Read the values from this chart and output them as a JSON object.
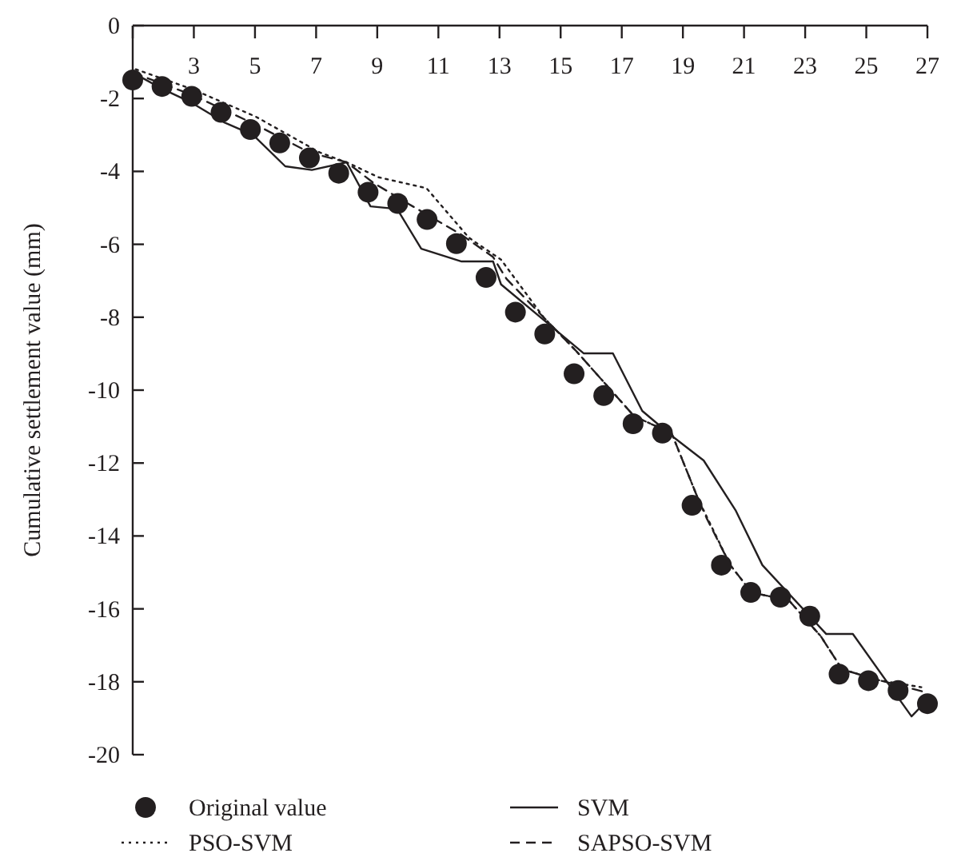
{
  "chart_data": {
    "type": "line",
    "ylabel": "Cumulative settlement value (mm)",
    "xlim": [
      1,
      27
    ],
    "xticks": [
      {
        "value": 1,
        "label": null
      },
      3,
      5,
      7,
      9,
      11,
      13,
      15,
      17,
      19,
      21,
      23,
      25,
      27
    ],
    "ylim": [
      -20,
      0
    ],
    "yticks": [
      0,
      -2,
      -4,
      -6,
      -8,
      -10,
      -12,
      -14,
      -16,
      -18,
      -20
    ],
    "grid": false,
    "legend": "bottom",
    "series": [
      {
        "name": "Original value",
        "type": "scatter",
        "marker": "circle",
        "color": "#231f20",
        "x": [
          1,
          1.96,
          2.93,
          3.89,
          4.85,
          5.81,
          6.78,
          7.74,
          8.7,
          9.67,
          10.63,
          11.59,
          12.56,
          13.52,
          14.48,
          15.44,
          16.41,
          17.37,
          18.33,
          19.3,
          20.26,
          21.22,
          22.19,
          23.15,
          24.11,
          25.07,
          26.04,
          27
        ],
        "values": [
          -1.49,
          -1.67,
          -1.94,
          -2.38,
          -2.85,
          -3.22,
          -3.63,
          -4.05,
          -4.57,
          -4.88,
          -5.32,
          -5.98,
          -6.91,
          -7.86,
          -8.46,
          -9.55,
          -10.15,
          -10.92,
          -11.18,
          -13.16,
          -14.8,
          -15.55,
          -15.68,
          -16.2,
          -17.79,
          -17.97,
          -18.24,
          -18.6
        ]
      },
      {
        "name": "SVM",
        "line_style": "solid",
        "marker": "none",
        "color": "#231f20",
        "x": [
          1,
          1.98,
          2.94,
          3.98,
          4.94,
          5.99,
          6.86,
          8.0,
          8.78,
          9.65,
          10.44,
          11.76,
          12.79,
          13.05,
          14.45,
          15.75,
          16.71,
          17.67,
          18.63,
          19.68,
          20.72,
          21.6,
          23.69,
          24.56,
          26.48,
          27
        ],
        "values": [
          -1.29,
          -1.74,
          -2.12,
          -2.65,
          -3.0,
          -3.86,
          -3.96,
          -3.75,
          -4.96,
          -5.03,
          -6.12,
          -6.47,
          -6.47,
          -7.1,
          -8.08,
          -8.99,
          -8.99,
          -10.57,
          -11.25,
          -11.93,
          -13.29,
          -14.8,
          -16.69,
          -16.69,
          -18.95,
          -18.5
        ]
      },
      {
        "name": "PSO-SVM",
        "line_style": "dotted",
        "marker": "none",
        "color": "#231f20",
        "x": [
          1.1,
          2.94,
          5.03,
          7.12,
          8.08,
          9.04,
          10.61,
          12.0,
          13.05,
          14.45,
          15.49,
          17.41,
          18.63,
          19.5,
          20.55,
          21.25,
          22.47,
          23.51,
          24.21,
          25.43,
          26.8
        ],
        "values": [
          -1.2,
          -1.74,
          -2.5,
          -3.48,
          -3.78,
          -4.16,
          -4.46,
          -5.82,
          -6.42,
          -8.01,
          -8.91,
          -10.72,
          -11.18,
          -12.99,
          -14.8,
          -15.55,
          -15.77,
          -16.75,
          -17.66,
          -17.96,
          -18.15
        ]
      },
      {
        "name": "SAPSO-SVM",
        "line_style": "dashed",
        "marker": "none",
        "color": "#231f20",
        "x": [
          1,
          2.94,
          5.03,
          6.78,
          8.0,
          8.87,
          9.92,
          11.76,
          12.79,
          13.23,
          14.45,
          15.49,
          17.41,
          18.63,
          19.5,
          19.77,
          20.55,
          21.25,
          22.47,
          23.51,
          24.21,
          25.43,
          27
        ],
        "values": [
          -1.29,
          -1.9,
          -2.72,
          -3.48,
          -3.75,
          -4.31,
          -4.84,
          -5.74,
          -6.35,
          -6.95,
          -8.01,
          -8.91,
          -10.72,
          -11.18,
          -12.99,
          -13.5,
          -14.8,
          -15.55,
          -15.77,
          -16.75,
          -17.66,
          -17.96,
          -18.3
        ]
      }
    ]
  }
}
